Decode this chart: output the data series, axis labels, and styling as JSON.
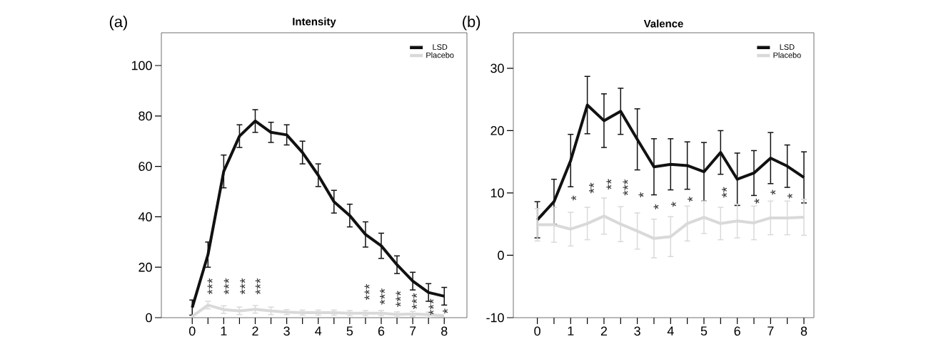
{
  "chart_data": [
    {
      "type": "line",
      "title": "Intensity",
      "annotations": [
        "(a)",
        "***",
        "***",
        "***",
        "***",
        "***",
        "***",
        "***",
        "***",
        "***",
        "*"
      ],
      "x": [
        0,
        0.5,
        1,
        1.5,
        2,
        2.5,
        3,
        3.5,
        4,
        4.5,
        5,
        5.5,
        6,
        6.5,
        7,
        7.5,
        8
      ],
      "series": [
        {
          "name": "LSD",
          "color": "#111111",
          "values": [
            4,
            25,
            58,
            72,
            78,
            73.5,
            72.5,
            65.5,
            56.5,
            46,
            40.5,
            33,
            28.5,
            21,
            14.5,
            10,
            8.5
          ],
          "errors": [
            3,
            5,
            6.5,
            4.5,
            4.5,
            4,
            4,
            4.5,
            4.5,
            4.5,
            4.5,
            5,
            5,
            3.5,
            3.5,
            3.5,
            3.5
          ]
        },
        {
          "name": "Placebo",
          "color": "#d9d9d9",
          "values": [
            0.5,
            5,
            3.2,
            2.7,
            3.3,
            2.7,
            2.2,
            2,
            2,
            2,
            1.8,
            1.8,
            1.8,
            1.3,
            1.5,
            1.2,
            0.8
          ],
          "errors": [
            null,
            1.5,
            1.5,
            1.5,
            1.5,
            1.5,
            1,
            1,
            1,
            1,
            1,
            1,
            1,
            1,
            1,
            1,
            null
          ]
        }
      ],
      "xlim": [
        -0.98,
        8.72
      ],
      "ylim": [
        0,
        113
      ],
      "xticks": [
        0,
        {
          "value": 0.5,
          "label": null
        },
        1,
        {
          "value": 1.5,
          "label": null
        },
        2,
        {
          "value": 2.5,
          "label": null
        },
        3,
        {
          "value": 3.5,
          "label": null
        },
        4,
        {
          "value": 4.5,
          "label": null
        },
        5,
        {
          "value": 5.5,
          "label": null
        },
        6,
        {
          "value": 6.5,
          "label": null
        },
        7,
        {
          "value": 7.5,
          "label": null
        },
        8
      ],
      "yticks": [
        0,
        20,
        40,
        60,
        80,
        100
      ],
      "legend": "top right",
      "marker": "none"
    },
    {
      "type": "line",
      "title": "Valence",
      "annotations": [
        "(b)",
        "*",
        "**",
        "**",
        "***",
        "*",
        "*",
        "*",
        "*",
        "**",
        "*",
        "*",
        "*"
      ],
      "x": [
        0,
        0.5,
        1,
        1.5,
        2,
        2.5,
        3,
        3.5,
        4,
        4.5,
        5,
        5.5,
        6,
        6.5,
        7,
        7.5,
        8
      ],
      "series": [
        {
          "name": "LSD",
          "color": "#111111",
          "values": [
            5.7,
            8.6,
            15.2,
            24.1,
            21.6,
            23.1,
            18.6,
            14.2,
            14.6,
            14.4,
            13.4,
            16.5,
            12.2,
            13.2,
            15.6,
            14.3,
            12.5
          ],
          "errors": [
            2.9,
            3.6,
            4.2,
            4.6,
            4.3,
            3.7,
            4.9,
            4.5,
            4.1,
            3.8,
            4.7,
            3.5,
            4.2,
            3.6,
            4.1,
            3.4,
            4.1
          ]
        },
        {
          "name": "Placebo",
          "color": "#d9d9d9",
          "values": [
            4.9,
            4.9,
            4.2,
            5.1,
            6.3,
            5,
            3.9,
            2.7,
            3,
            5.1,
            6.1,
            5.1,
            5.5,
            5.2,
            6,
            6,
            6.1
          ],
          "errors": [
            2.6,
            2.8,
            2.7,
            2.6,
            2.9,
            2.8,
            2.9,
            3.1,
            3.2,
            2.8,
            2.6,
            2.6,
            2.7,
            2.7,
            2.7,
            2.7,
            2.9
          ]
        }
      ],
      "xlim": [
        -0.72,
        8.3
      ],
      "ylim": [
        -10,
        35.7
      ],
      "xticks": [
        0,
        {
          "value": 0.5,
          "label": null
        },
        1,
        {
          "value": 1.5,
          "label": null
        },
        2,
        {
          "value": 2.5,
          "label": null
        },
        3,
        {
          "value": 3.5,
          "label": null
        },
        4,
        {
          "value": 4.5,
          "label": null
        },
        5,
        {
          "value": 5.5,
          "label": null
        },
        6,
        {
          "value": 6.5,
          "label": null
        },
        7,
        {
          "value": 7.5,
          "label": null
        },
        8
      ],
      "yticks": [
        -10,
        0,
        10,
        20,
        30
      ],
      "legend": "top right",
      "marker": "none"
    }
  ]
}
